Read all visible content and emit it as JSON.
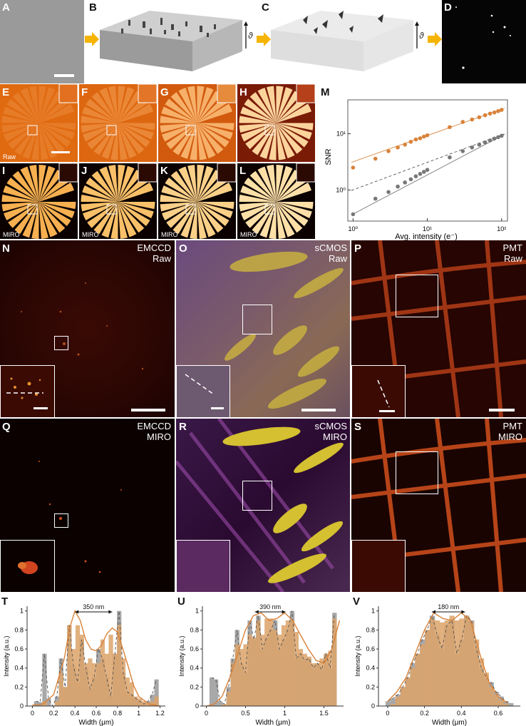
{
  "labels": {
    "A": "A",
    "B": "B",
    "C": "C",
    "D": "D",
    "E": "E",
    "F": "F",
    "G": "G",
    "H": "H",
    "I": "I",
    "J": "J",
    "K": "K",
    "L": "L",
    "M": "M",
    "N": "N",
    "O": "O",
    "P": "P",
    "Q": "Q",
    "R": "R",
    "S": "S",
    "T": "T",
    "U": "U",
    "V": "V"
  },
  "theta": "ϑ",
  "panel_tags": {
    "raw": "Raw",
    "miro": "MIRO"
  },
  "micro": {
    "N": [
      "EMCCD",
      "Raw"
    ],
    "O": [
      "sCMOS",
      "Raw"
    ],
    "P": [
      "PMT",
      "Raw"
    ],
    "Q": [
      "EMCCD",
      "MIRO"
    ],
    "R": [
      "sCMOS",
      "MIRO"
    ],
    "S": [
      "PMT",
      "MIRO"
    ]
  },
  "colors": {
    "orange": "#d9823a",
    "gray": "#777777",
    "arrow": "#f5b400"
  },
  "chart_data": [
    {
      "id": "M",
      "type": "scatter",
      "xlabel": "Avg. intensity (e⁻)",
      "ylabel": "SNR",
      "xscale": "log",
      "yscale": "log",
      "xticks": [
        "10⁰",
        "10¹",
        "10²"
      ],
      "yticks": [
        "10⁰",
        "10¹"
      ],
      "xlim": [
        0.85,
        120
      ],
      "ylim": [
        0.28,
        40
      ],
      "series": [
        {
          "color": "#d9823a",
          "x": [
            1,
            2,
            3,
            4,
            5,
            6,
            7,
            8,
            9,
            10,
            20,
            30,
            40,
            50,
            60,
            70,
            80,
            90,
            100
          ],
          "y": [
            2.5,
            3.6,
            4.9,
            5.7,
            6.4,
            7.2,
            7.9,
            8.3,
            8.9,
            9.4,
            13.1,
            16.2,
            17.9,
            19.6,
            21.3,
            22.8,
            23.9,
            25.2,
            26.5
          ]
        },
        {
          "color": "#777777",
          "x": [
            1,
            2,
            3,
            4,
            5,
            6,
            7,
            8,
            9,
            10,
            20,
            30,
            40,
            50,
            60,
            70,
            80,
            90,
            100
          ],
          "y": [
            0.37,
            0.7,
            0.92,
            1.15,
            1.36,
            1.55,
            1.75,
            1.93,
            2.1,
            2.28,
            3.8,
            4.9,
            5.7,
            6.4,
            7.0,
            7.6,
            8.2,
            8.7,
            9.2
          ]
        }
      ],
      "lines": [
        {
          "color": "#d9823a",
          "style": "solid",
          "x": [
            0.95,
            110
          ],
          "y": [
            3.1,
            28.5
          ]
        },
        {
          "color": "#555555",
          "style": "dashed",
          "x": [
            0.95,
            110
          ],
          "y": [
            0.98,
            10.0
          ]
        },
        {
          "color": "#777777",
          "style": "solid",
          "x": [
            0.95,
            110
          ],
          "y": [
            0.36,
            9.8
          ]
        }
      ]
    },
    {
      "id": "T",
      "type": "area",
      "xlabel": "Width (μm)",
      "ylabel": "Intensity (a.u.)",
      "xlim": [
        -0.05,
        1.25
      ],
      "ylim": [
        0,
        1.05
      ],
      "xticks": [
        0,
        0.2,
        0.4,
        0.6,
        0.8,
        1,
        1.2
      ],
      "yticks": [
        0,
        0.2,
        0.4,
        0.6,
        0.8,
        1
      ],
      "annotation": "350 nm",
      "annotation_range": [
        0.4,
        0.75
      ],
      "gray": [
        0.05,
        0.04,
        0.55,
        0.08,
        0.0,
        0.1,
        0.5,
        0.2,
        0.85,
        0.42,
        0.25,
        0.7,
        0.4,
        0.18,
        0.3,
        0.6,
        0.5,
        0.3,
        0.1,
        0.55,
        1.0,
        0.35,
        0.15,
        0.12,
        0.08,
        0.05,
        0.02,
        0.05,
        0.12,
        0.28
      ],
      "orange": [
        0.0,
        0.0,
        0.05,
        0.0,
        0.0,
        0.05,
        0.35,
        0.2,
        0.85,
        0.6,
        0.85,
        0.75,
        0.45,
        0.5,
        0.45,
        0.45,
        0.7,
        0.55,
        0.75,
        0.55,
        0.85,
        0.5,
        0.3,
        0.25,
        0.1,
        0.08,
        0.05,
        0.03,
        0.05,
        0.1
      ],
      "fit_x": [
        0.0,
        0.1,
        0.2,
        0.3,
        0.35,
        0.4,
        0.45,
        0.5,
        0.55,
        0.6,
        0.65,
        0.7,
        0.75,
        0.8,
        0.85,
        0.9,
        0.95,
        1.0,
        1.1,
        1.2
      ],
      "fit_y": [
        0.01,
        0.02,
        0.12,
        0.5,
        0.82,
        1.0,
        0.9,
        0.7,
        0.6,
        0.58,
        0.64,
        0.76,
        0.82,
        0.78,
        0.6,
        0.42,
        0.22,
        0.1,
        0.02,
        0.0
      ]
    },
    {
      "id": "U",
      "type": "area",
      "xlabel": "Width (μm)",
      "ylabel": "Intensity (a.u.)",
      "xlim": [
        -0.05,
        1.75
      ],
      "ylim": [
        0,
        1.05
      ],
      "xticks": [
        0,
        0.5,
        1,
        1.5
      ],
      "yticks": [
        0,
        0.2,
        0.4,
        0.6,
        0.8,
        1
      ],
      "annotation": "390 nm",
      "annotation_range": [
        0.62,
        1.01
      ],
      "gray": [
        0.3,
        0.28,
        0.05,
        0.02,
        0.2,
        0.5,
        0.8,
        0.45,
        0.35,
        0.9,
        0.7,
        0.95,
        0.6,
        0.72,
        0.8,
        0.9,
        0.6,
        0.7,
        0.8,
        1.0,
        0.5,
        0.55,
        0.48,
        0.5,
        0.4,
        0.45,
        0.38,
        0.55,
        0.4,
        0.98
      ],
      "orange": [
        0.0,
        0.0,
        0.0,
        0.02,
        0.15,
        0.45,
        0.65,
        0.6,
        0.65,
        0.75,
        0.72,
        0.9,
        0.75,
        0.92,
        0.92,
        0.8,
        0.75,
        0.85,
        0.9,
        0.9,
        0.78,
        0.6,
        0.55,
        0.52,
        0.45,
        0.45,
        0.5,
        0.55,
        0.58,
        0.92
      ],
      "fit_x": [
        0.0,
        0.1,
        0.2,
        0.3,
        0.4,
        0.5,
        0.6,
        0.7,
        0.8,
        0.9,
        1.0,
        1.1,
        1.2,
        1.3,
        1.4,
        1.5,
        1.6,
        1.7
      ],
      "fit_y": [
        0.0,
        0.02,
        0.1,
        0.3,
        0.55,
        0.8,
        0.95,
        0.98,
        0.9,
        0.92,
        0.98,
        0.9,
        0.75,
        0.6,
        0.48,
        0.45,
        0.6,
        0.9
      ]
    },
    {
      "id": "V",
      "type": "area",
      "xlabel": "Width (μm)",
      "ylabel": "Intensity (a.u.)",
      "xlim": [
        -0.05,
        0.72
      ],
      "ylim": [
        0,
        1.05
      ],
      "xticks": [
        0,
        0.2,
        0.4,
        0.6
      ],
      "yticks": [
        0,
        0.2,
        0.4,
        0.6,
        0.8,
        1
      ],
      "annotation": "180 nm",
      "annotation_range": [
        0.24,
        0.42
      ],
      "gray": [
        0.05,
        0.08,
        0.12,
        0.2,
        0.3,
        0.45,
        0.55,
        0.7,
        0.8,
        0.95,
        0.75,
        0.6,
        0.85,
        0.9,
        0.55,
        0.7,
        0.95,
        0.9,
        0.6,
        0.4,
        0.3,
        0.25,
        0.15,
        0.1,
        0.05,
        0.03
      ],
      "orange": [
        0.0,
        0.02,
        0.1,
        0.2,
        0.3,
        0.4,
        0.55,
        0.65,
        0.8,
        0.92,
        0.9,
        0.88,
        0.9,
        0.95,
        0.9,
        0.92,
        0.95,
        0.88,
        0.7,
        0.5,
        0.35,
        0.2,
        0.12,
        0.06,
        0.02,
        0.0
      ],
      "fit_x": [
        0.0,
        0.05,
        0.1,
        0.15,
        0.2,
        0.25,
        0.3,
        0.35,
        0.4,
        0.45,
        0.5,
        0.55,
        0.6,
        0.65
      ],
      "fit_y": [
        0.05,
        0.15,
        0.3,
        0.55,
        0.8,
        0.98,
        0.92,
        0.9,
        0.98,
        0.9,
        0.55,
        0.25,
        0.1,
        0.03
      ]
    }
  ]
}
